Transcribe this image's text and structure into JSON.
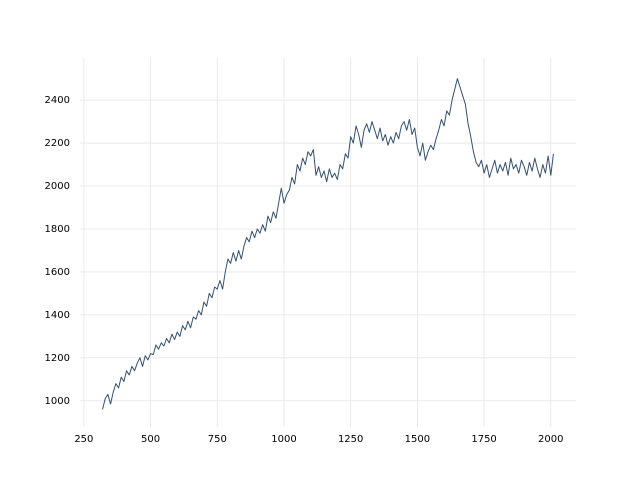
{
  "chart_data": {
    "type": "line",
    "x": [
      320,
      330,
      340,
      350,
      360,
      370,
      380,
      390,
      400,
      410,
      420,
      430,
      440,
      450,
      460,
      470,
      480,
      490,
      500,
      510,
      520,
      530,
      540,
      550,
      560,
      570,
      580,
      590,
      600,
      610,
      620,
      630,
      640,
      650,
      660,
      670,
      680,
      690,
      700,
      710,
      720,
      730,
      740,
      750,
      760,
      770,
      780,
      790,
      800,
      810,
      820,
      830,
      840,
      850,
      860,
      870,
      880,
      890,
      900,
      910,
      920,
      930,
      940,
      950,
      960,
      970,
      980,
      990,
      1000,
      1010,
      1020,
      1030,
      1040,
      1050,
      1060,
      1070,
      1080,
      1090,
      1100,
      1110,
      1120,
      1130,
      1140,
      1150,
      1160,
      1170,
      1180,
      1190,
      1200,
      1210,
      1220,
      1230,
      1240,
      1250,
      1260,
      1270,
      1280,
      1290,
      1300,
      1310,
      1320,
      1330,
      1340,
      1350,
      1360,
      1370,
      1380,
      1390,
      1400,
      1410,
      1420,
      1430,
      1440,
      1450,
      1460,
      1470,
      1480,
      1490,
      1500,
      1510,
      1520,
      1530,
      1540,
      1550,
      1560,
      1570,
      1580,
      1590,
      1600,
      1610,
      1620,
      1630,
      1640,
      1650,
      1660,
      1670,
      1680,
      1690,
      1700,
      1710,
      1720,
      1730,
      1740,
      1750,
      1760,
      1770,
      1780,
      1790,
      1800,
      1810,
      1820,
      1830,
      1840,
      1850,
      1860,
      1870,
      1880,
      1890,
      1900,
      1910,
      1920,
      1930,
      1940,
      1950,
      1960,
      1970,
      1980,
      1990,
      2000,
      2010
    ],
    "values": [
      960,
      1010,
      1030,
      985,
      1040,
      1080,
      1060,
      1110,
      1090,
      1140,
      1120,
      1160,
      1140,
      1175,
      1200,
      1160,
      1210,
      1190,
      1220,
      1215,
      1260,
      1240,
      1270,
      1255,
      1290,
      1270,
      1310,
      1285,
      1320,
      1300,
      1350,
      1330,
      1370,
      1340,
      1390,
      1380,
      1420,
      1400,
      1460,
      1440,
      1500,
      1480,
      1530,
      1520,
      1560,
      1520,
      1600,
      1660,
      1640,
      1690,
      1650,
      1700,
      1660,
      1720,
      1760,
      1740,
      1790,
      1760,
      1800,
      1780,
      1820,
      1790,
      1860,
      1830,
      1880,
      1850,
      1920,
      1990,
      1920,
      1960,
      1980,
      2040,
      2010,
      2100,
      2070,
      2130,
      2100,
      2160,
      2140,
      2170,
      2050,
      2090,
      2040,
      2070,
      2020,
      2080,
      2040,
      2060,
      2030,
      2100,
      2080,
      2150,
      2130,
      2230,
      2200,
      2280,
      2240,
      2180,
      2260,
      2290,
      2250,
      2300,
      2260,
      2220,
      2270,
      2210,
      2240,
      2190,
      2230,
      2200,
      2250,
      2220,
      2280,
      2300,
      2260,
      2310,
      2240,
      2270,
      2180,
      2140,
      2200,
      2120,
      2160,
      2190,
      2170,
      2220,
      2260,
      2310,
      2280,
      2350,
      2330,
      2400,
      2450,
      2500,
      2460,
      2420,
      2380,
      2290,
      2230,
      2160,
      2110,
      2090,
      2120,
      2060,
      2100,
      2040,
      2080,
      2120,
      2060,
      2100,
      2070,
      2110,
      2050,
      2130,
      2080,
      2100,
      2060,
      2120,
      2090,
      2050,
      2110,
      2070,
      2130,
      2080,
      2040,
      2100,
      2060,
      2140,
      2050,
      2150
    ],
    "color": "#34506f",
    "xlim": [
      235.5,
      2094.5
    ],
    "xticks": [
      250,
      500,
      750,
      1000,
      1250,
      1500,
      1750,
      2000
    ],
    "ylim": [
      877,
      2598
    ],
    "yticks": [
      1000,
      1200,
      1400,
      1600,
      1800,
      2000,
      2200,
      2400
    ],
    "grid": true
  }
}
